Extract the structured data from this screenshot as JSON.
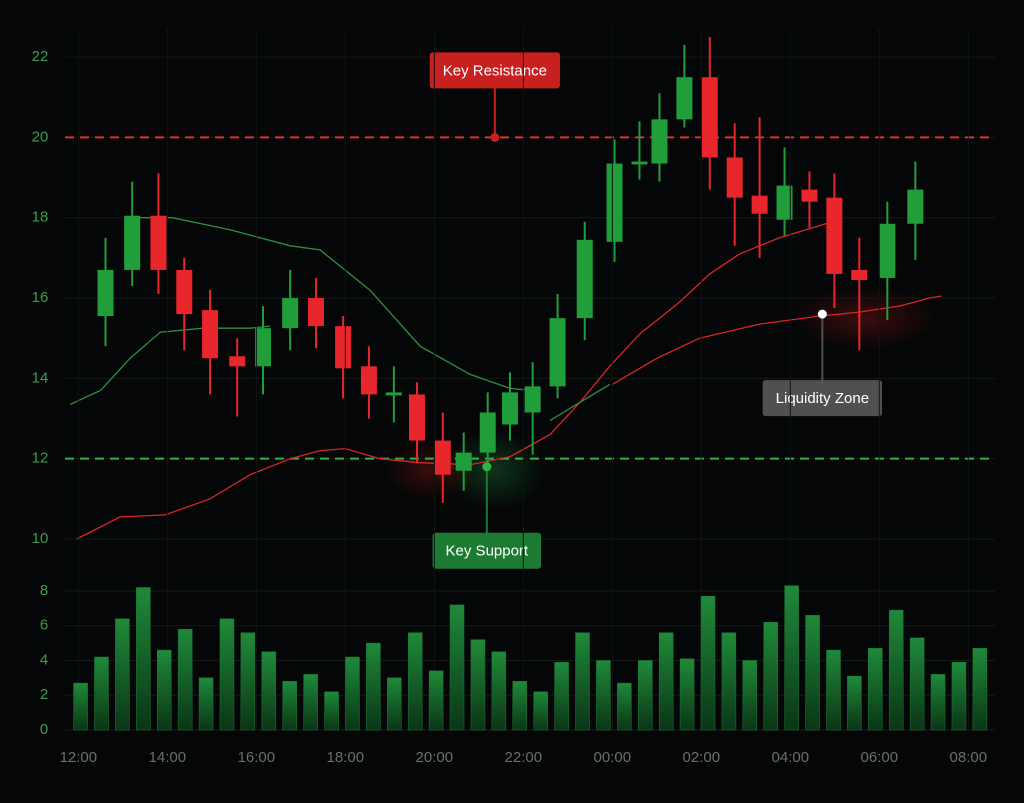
{
  "chart_data": [
    {
      "type": "candlestick",
      "x": [
        0.61,
        1.21,
        1.8,
        2.38,
        2.96,
        3.57,
        4.15,
        4.76,
        5.34,
        5.95,
        6.53,
        7.09,
        7.61,
        8.19,
        8.66,
        9.2,
        9.7,
        10.21,
        10.77,
        11.38,
        12.05,
        12.61,
        13.06,
        13.62,
        14.19,
        14.75,
        15.31,
        15.87,
        16.43,
        16.99,
        17.55,
        18.18,
        18.81
      ],
      "open": [
        15.55,
        16.7,
        18.05,
        16.7,
        15.7,
        14.55,
        14.3,
        15.25,
        16.0,
        15.3,
        14.3,
        13.6,
        13.6,
        12.45,
        11.7,
        12.15,
        12.85,
        13.15,
        13.8,
        15.5,
        17.4,
        19.35,
        19.35,
        20.45,
        21.5,
        19.5,
        18.55,
        17.95,
        18.7,
        18.5,
        16.7,
        16.5,
        17.85
      ],
      "high": [
        17.5,
        18.9,
        19.1,
        17.0,
        16.2,
        15.0,
        15.8,
        16.7,
        16.5,
        15.55,
        14.8,
        14.3,
        13.9,
        13.15,
        12.65,
        13.65,
        14.15,
        14.4,
        16.1,
        17.9,
        19.95,
        20.4,
        21.1,
        22.3,
        22.5,
        20.35,
        20.5,
        19.75,
        19.15,
        19.1,
        17.5,
        18.4,
        19.4
      ],
      "low": [
        14.8,
        16.3,
        16.1,
        14.7,
        13.6,
        13.05,
        13.6,
        14.7,
        14.75,
        13.5,
        13.0,
        12.9,
        11.9,
        10.9,
        11.2,
        11.8,
        12.45,
        12.1,
        13.5,
        14.95,
        16.9,
        18.95,
        18.9,
        20.25,
        18.7,
        17.3,
        17.0,
        17.55,
        17.75,
        15.75,
        14.7,
        15.45,
        16.95
      ],
      "close": [
        16.7,
        18.05,
        16.7,
        15.6,
        14.5,
        14.3,
        15.25,
        16.0,
        15.3,
        14.25,
        13.6,
        13.65,
        12.45,
        11.6,
        12.15,
        13.15,
        13.65,
        13.8,
        15.5,
        17.45,
        19.35,
        19.4,
        20.45,
        21.5,
        19.5,
        18.5,
        18.1,
        18.8,
        18.4,
        16.6,
        16.45,
        17.85,
        18.7
      ],
      "up_color": "#1f9e3a",
      "down_color": "#e8262b",
      "xlim": [
        -0.3,
        20.6
      ],
      "ylim": [
        9.8,
        22.7
      ],
      "yticks": [
        10,
        12,
        14,
        16,
        18,
        20,
        22
      ],
      "grid": true,
      "lines": [
        {
          "color": "#d9252a",
          "x": [
            -0.04,
            0.94,
            1.95,
            2.96,
            3.86,
            4.76,
            5.43,
            6.0,
            6.78,
            7.68,
            8.8,
            9.7,
            10.6,
            11.27,
            11.94,
            12.61,
            13.51,
            14.19,
            14.86,
            15.76,
            16.65,
            17.1
          ],
          "values": [
            10.0,
            10.55,
            10.6,
            11.0,
            11.6,
            12.0,
            12.2,
            12.25,
            12.0,
            11.9,
            11.85,
            12.05,
            12.6,
            13.4,
            14.3,
            15.1,
            15.9,
            16.6,
            17.1,
            17.5,
            17.8,
            17.95
          ]
        },
        {
          "color": "#d9252a",
          "x": [
            12.0,
            13.0,
            13.96,
            15.31,
            16.65,
            17.55,
            18.45,
            19.13,
            19.4
          ],
          "values": [
            13.85,
            14.5,
            15.0,
            15.35,
            15.55,
            15.65,
            15.8,
            16.0,
            16.05
          ]
        },
        {
          "color": "#2e8f3e",
          "x": [
            1.39,
            2.11,
            3.41,
            4.76,
            5.43,
            6.55,
            7.68,
            8.8,
            9.7,
            10.2
          ],
          "values": [
            18.0,
            18.0,
            17.7,
            17.3,
            17.2,
            16.2,
            14.8,
            14.1,
            13.75,
            13.7
          ]
        },
        {
          "color": "#2e8f3e",
          "x": [
            -0.18,
            0.5,
            1.16,
            1.84,
            2.8,
            3.86,
            4.31
          ],
          "values": [
            13.35,
            13.7,
            14.5,
            15.15,
            15.25,
            15.25,
            15.3
          ]
        },
        {
          "color": "#2e8f3e",
          "x": [
            10.6,
            11.27,
            11.94
          ],
          "values": [
            12.95,
            13.4,
            13.85
          ]
        }
      ],
      "hlines": [
        {
          "value": 20,
          "color": "#e0302f"
        },
        {
          "value": 12,
          "color": "#2fb344"
        }
      ],
      "annotations": [
        {
          "text": "Key Resistance",
          "x": 9.36,
          "y": 20,
          "color": "#c8201f",
          "placement": "above"
        },
        {
          "text": "Key Support",
          "x": 9.18,
          "y": 11.8,
          "color": "#1c7a33",
          "placement": "below"
        },
        {
          "text": "Liquidity Zone",
          "x": 16.72,
          "y": 15.6,
          "color": "#505050",
          "placement": "below"
        }
      ]
    },
    {
      "type": "bar",
      "x": [
        0.05,
        0.52,
        0.99,
        1.46,
        1.93,
        2.4,
        2.87,
        3.34,
        3.81,
        4.28,
        4.75,
        5.22,
        5.69,
        6.16,
        6.63,
        7.1,
        7.57,
        8.04,
        8.51,
        8.98,
        9.45,
        9.92,
        10.39,
        10.86,
        11.33,
        11.8,
        12.27,
        12.74,
        13.21,
        13.68,
        14.15,
        14.62,
        15.09,
        15.56,
        16.03,
        16.5,
        16.97,
        17.44,
        17.91,
        18.38,
        18.85,
        19.32,
        19.79,
        20.26
      ],
      "values": [
        2.7,
        4.2,
        6.4,
        8.2,
        4.6,
        5.8,
        3.0,
        6.4,
        5.6,
        4.5,
        2.8,
        3.2,
        2.2,
        4.2,
        5.0,
        3.0,
        5.6,
        3.4,
        7.2,
        5.2,
        4.5,
        2.8,
        2.2,
        3.9,
        5.6,
        4.0,
        2.7,
        4.0,
        5.6,
        4.1,
        7.7,
        5.6,
        4.0,
        6.2,
        8.3,
        6.6,
        4.6,
        3.1,
        4.7,
        6.9,
        5.3,
        3.2,
        3.9,
        4.7
      ],
      "color": "#1d7a34",
      "xlim": [
        -0.3,
        20.6
      ],
      "ylim": [
        0,
        9
      ],
      "yticks": [
        0,
        2,
        4,
        6,
        8
      ],
      "grid": true,
      "xticks": [
        {
          "value": 0,
          "label": "12:00"
        },
        {
          "value": 2,
          "label": "14:00"
        },
        {
          "value": 4,
          "label": "16:00"
        },
        {
          "value": 6,
          "label": "18:00"
        },
        {
          "value": 8,
          "label": "20:00"
        },
        {
          "value": 10,
          "label": "22:00"
        },
        {
          "value": 12,
          "label": "00:00"
        },
        {
          "value": 14,
          "label": "02:00"
        },
        {
          "value": 16,
          "label": "04:00"
        },
        {
          "value": 18,
          "label": "06:00"
        },
        {
          "value": 20,
          "label": "08:00"
        }
      ]
    }
  ]
}
